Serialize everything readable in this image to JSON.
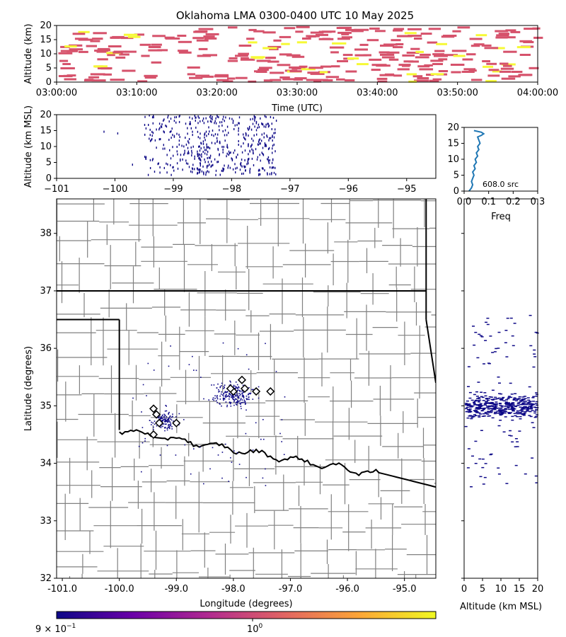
{
  "title": "Oklahoma LMA 0300-0400 UTC 10 May 2025",
  "colors": {
    "source_dot": "#0d0887",
    "event_pink": "#d6526b",
    "event_yellow": "#f6f936",
    "county": "#808080",
    "border": "#000000",
    "hist_line": "#1f77b4"
  },
  "chart_data": [
    {
      "panel": "time-height",
      "type": "scatter",
      "xlabel": "Time (UTC)",
      "ylabel": "Altitude (km)",
      "xticks": [
        "03:00:00",
        "03:10:00",
        "03:20:00",
        "03:30:00",
        "03:40:00",
        "03:50:00",
        "04:00:00"
      ],
      "xlim_minutes": [
        0,
        60
      ],
      "ylim": [
        0,
        20
      ],
      "yticks": [
        0,
        5,
        10,
        15,
        20
      ],
      "note_marks": "dense horizontal dashes from 0 to 20 km across the hour; gap near 03:12-03:15"
    },
    {
      "panel": "lon-alt",
      "type": "scatter",
      "ylabel": "Altitude (km MSL)",
      "xlim": [
        -101,
        -94.5
      ],
      "xticks": [
        -101,
        -100,
        -99,
        -98,
        -97,
        -96,
        -95
      ],
      "ylim": [
        0,
        20
      ],
      "yticks": [
        0,
        5,
        10,
        15,
        20
      ],
      "note_marks": "sources clustered between -99.6 and -97.2 longitude"
    },
    {
      "panel": "alt-histogram",
      "type": "line",
      "xlabel": "Freq",
      "xlim": [
        0,
        0.3
      ],
      "xticks": [
        "0.0",
        "0.1",
        "0.2",
        "0.3"
      ],
      "ylim": [
        0,
        20
      ],
      "yticks": [
        0,
        5,
        10,
        15,
        20
      ],
      "annotation": "608.0 src",
      "x": [
        0.02,
        0.03,
        0.035,
        0.03,
        0.035,
        0.04,
        0.035,
        0.045,
        0.04,
        0.05,
        0.045,
        0.055,
        0.05,
        0.06,
        0.055,
        0.065,
        0.06,
        0.055,
        0.07,
        0.08,
        0.07,
        0.04
      ],
      "y": [
        0,
        1,
        2,
        3,
        4,
        5,
        6,
        7,
        8,
        9,
        10,
        11,
        12,
        13,
        14,
        15,
        16,
        17,
        17.5,
        18,
        18.5,
        19
      ]
    },
    {
      "panel": "plan-view",
      "type": "scatter",
      "xlabel": "Longitude (degrees)",
      "ylabel": "Latitude (degrees)",
      "xlim": [
        -101.1,
        -94.45
      ],
      "xticks": [
        "-101.0",
        "-100.0",
        "-99.0",
        "-98.0",
        "-97.0",
        "-96.0",
        "-95.0"
      ],
      "ylim": [
        32,
        38.6
      ],
      "yticks": [
        32,
        33,
        34,
        35,
        36,
        37,
        38
      ],
      "stations": [
        {
          "lon": -98.0,
          "lat": 35.25
        },
        {
          "lon": -97.85,
          "lat": 35.45
        },
        {
          "lon": -97.6,
          "lat": 35.25
        },
        {
          "lon": -97.35,
          "lat": 35.25
        },
        {
          "lon": -97.8,
          "lat": 35.3
        },
        {
          "lon": -98.05,
          "lat": 35.3
        },
        {
          "lon": -99.4,
          "lat": 34.95
        },
        {
          "lon": -99.35,
          "lat": 34.85
        },
        {
          "lon": -99.3,
          "lat": 34.7
        },
        {
          "lon": -99.0,
          "lat": 34.7
        },
        {
          "lon": -99.4,
          "lat": 34.5
        }
      ]
    },
    {
      "panel": "alt-lat",
      "type": "scatter",
      "xlabel": "Altitude (km MSL)",
      "xlim": [
        0,
        20
      ],
      "xticks": [
        0,
        5,
        10,
        15,
        20
      ],
      "ylim": [
        32,
        38.6
      ]
    }
  ],
  "colorbar": {
    "label_left": "9 × 10",
    "label_left_exp": "−1",
    "label_mid": "10",
    "label_mid_exp": "0"
  }
}
